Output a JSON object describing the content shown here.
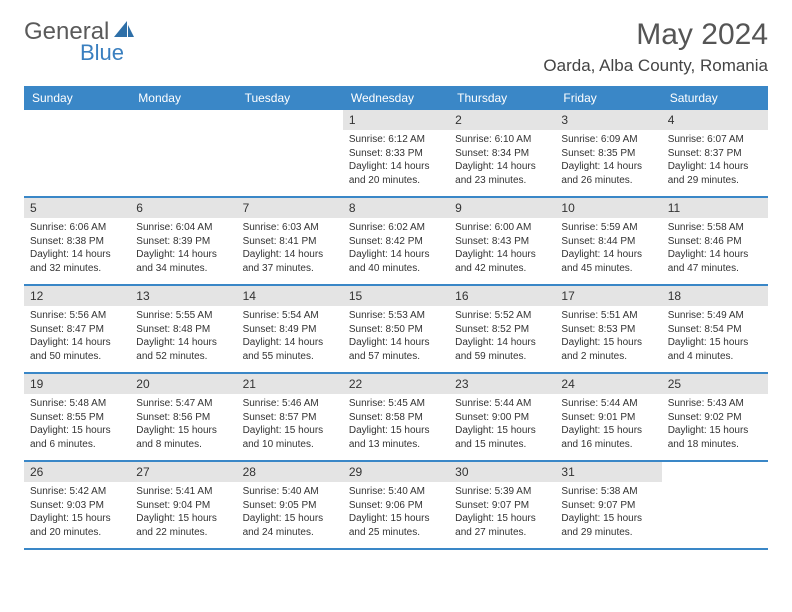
{
  "logo": {
    "text1": "General",
    "text2": "Blue"
  },
  "title": "May 2024",
  "location": "Oarda, Alba County, Romania",
  "colors": {
    "header_bg": "#3a87c7",
    "header_text": "#ffffff",
    "daynum_bg": "#e4e4e4",
    "border": "#3a87c7",
    "logo_gray": "#5a5a5a",
    "logo_blue": "#3a7fbf"
  },
  "day_labels": [
    "Sunday",
    "Monday",
    "Tuesday",
    "Wednesday",
    "Thursday",
    "Friday",
    "Saturday"
  ],
  "weeks": [
    [
      null,
      null,
      null,
      {
        "n": "1",
        "sr": "6:12 AM",
        "ss": "8:33 PM",
        "dl": "14 hours and 20 minutes."
      },
      {
        "n": "2",
        "sr": "6:10 AM",
        "ss": "8:34 PM",
        "dl": "14 hours and 23 minutes."
      },
      {
        "n": "3",
        "sr": "6:09 AM",
        "ss": "8:35 PM",
        "dl": "14 hours and 26 minutes."
      },
      {
        "n": "4",
        "sr": "6:07 AM",
        "ss": "8:37 PM",
        "dl": "14 hours and 29 minutes."
      }
    ],
    [
      {
        "n": "5",
        "sr": "6:06 AM",
        "ss": "8:38 PM",
        "dl": "14 hours and 32 minutes."
      },
      {
        "n": "6",
        "sr": "6:04 AM",
        "ss": "8:39 PM",
        "dl": "14 hours and 34 minutes."
      },
      {
        "n": "7",
        "sr": "6:03 AM",
        "ss": "8:41 PM",
        "dl": "14 hours and 37 minutes."
      },
      {
        "n": "8",
        "sr": "6:02 AM",
        "ss": "8:42 PM",
        "dl": "14 hours and 40 minutes."
      },
      {
        "n": "9",
        "sr": "6:00 AM",
        "ss": "8:43 PM",
        "dl": "14 hours and 42 minutes."
      },
      {
        "n": "10",
        "sr": "5:59 AM",
        "ss": "8:44 PM",
        "dl": "14 hours and 45 minutes."
      },
      {
        "n": "11",
        "sr": "5:58 AM",
        "ss": "8:46 PM",
        "dl": "14 hours and 47 minutes."
      }
    ],
    [
      {
        "n": "12",
        "sr": "5:56 AM",
        "ss": "8:47 PM",
        "dl": "14 hours and 50 minutes."
      },
      {
        "n": "13",
        "sr": "5:55 AM",
        "ss": "8:48 PM",
        "dl": "14 hours and 52 minutes."
      },
      {
        "n": "14",
        "sr": "5:54 AM",
        "ss": "8:49 PM",
        "dl": "14 hours and 55 minutes."
      },
      {
        "n": "15",
        "sr": "5:53 AM",
        "ss": "8:50 PM",
        "dl": "14 hours and 57 minutes."
      },
      {
        "n": "16",
        "sr": "5:52 AM",
        "ss": "8:52 PM",
        "dl": "14 hours and 59 minutes."
      },
      {
        "n": "17",
        "sr": "5:51 AM",
        "ss": "8:53 PM",
        "dl": "15 hours and 2 minutes."
      },
      {
        "n": "18",
        "sr": "5:49 AM",
        "ss": "8:54 PM",
        "dl": "15 hours and 4 minutes."
      }
    ],
    [
      {
        "n": "19",
        "sr": "5:48 AM",
        "ss": "8:55 PM",
        "dl": "15 hours and 6 minutes."
      },
      {
        "n": "20",
        "sr": "5:47 AM",
        "ss": "8:56 PM",
        "dl": "15 hours and 8 minutes."
      },
      {
        "n": "21",
        "sr": "5:46 AM",
        "ss": "8:57 PM",
        "dl": "15 hours and 10 minutes."
      },
      {
        "n": "22",
        "sr": "5:45 AM",
        "ss": "8:58 PM",
        "dl": "15 hours and 13 minutes."
      },
      {
        "n": "23",
        "sr": "5:44 AM",
        "ss": "9:00 PM",
        "dl": "15 hours and 15 minutes."
      },
      {
        "n": "24",
        "sr": "5:44 AM",
        "ss": "9:01 PM",
        "dl": "15 hours and 16 minutes."
      },
      {
        "n": "25",
        "sr": "5:43 AM",
        "ss": "9:02 PM",
        "dl": "15 hours and 18 minutes."
      }
    ],
    [
      {
        "n": "26",
        "sr": "5:42 AM",
        "ss": "9:03 PM",
        "dl": "15 hours and 20 minutes."
      },
      {
        "n": "27",
        "sr": "5:41 AM",
        "ss": "9:04 PM",
        "dl": "15 hours and 22 minutes."
      },
      {
        "n": "28",
        "sr": "5:40 AM",
        "ss": "9:05 PM",
        "dl": "15 hours and 24 minutes."
      },
      {
        "n": "29",
        "sr": "5:40 AM",
        "ss": "9:06 PM",
        "dl": "15 hours and 25 minutes."
      },
      {
        "n": "30",
        "sr": "5:39 AM",
        "ss": "9:07 PM",
        "dl": "15 hours and 27 minutes."
      },
      {
        "n": "31",
        "sr": "5:38 AM",
        "ss": "9:07 PM",
        "dl": "15 hours and 29 minutes."
      },
      null
    ]
  ]
}
